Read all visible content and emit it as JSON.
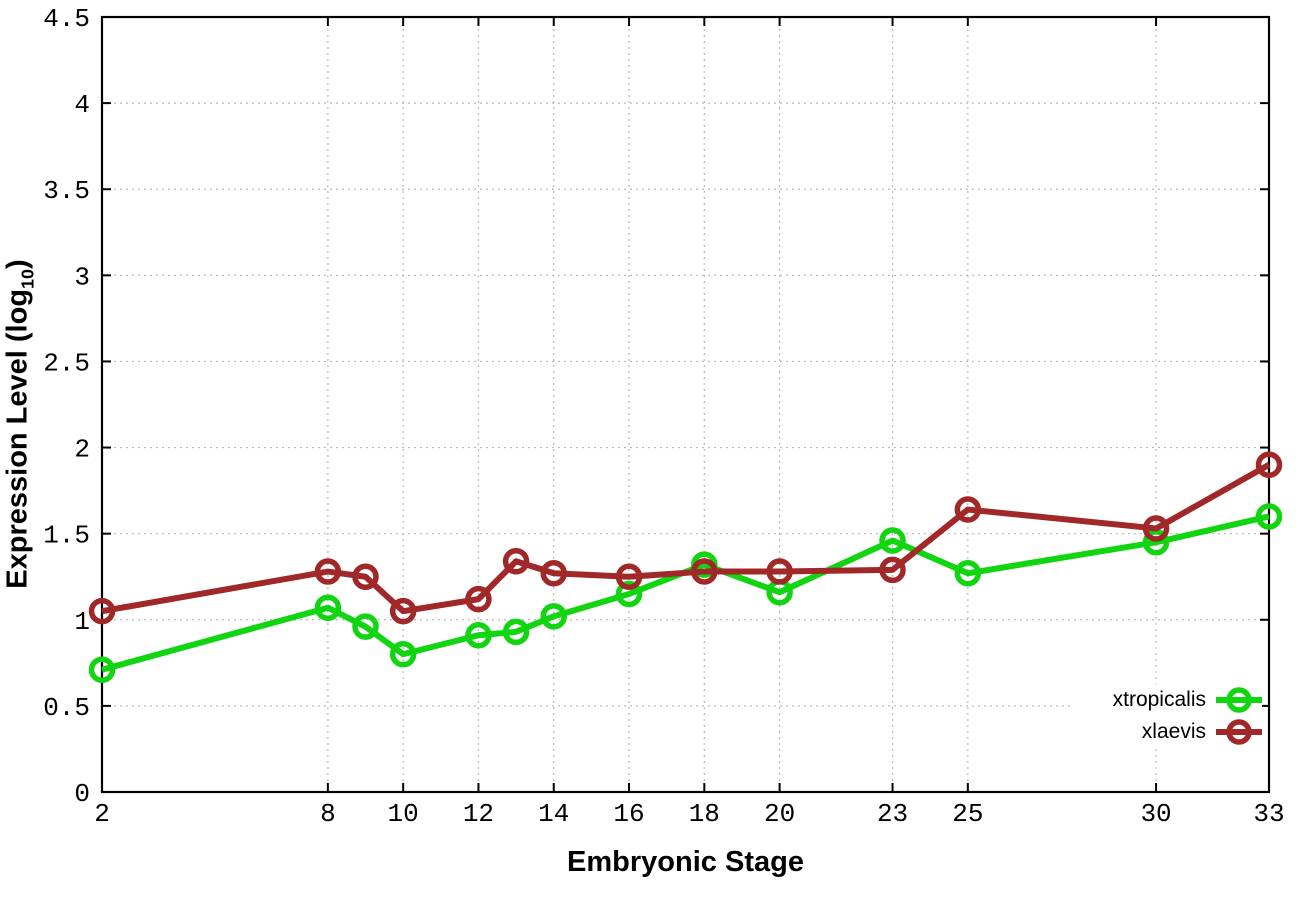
{
  "chart_data": {
    "type": "line",
    "title": "",
    "xlabel": "Embryonic Stage",
    "ylabel": {
      "main": "Expression Level (log",
      "sub": "10",
      "close": ")"
    },
    "x": [
      2,
      8,
      9,
      10,
      12,
      13,
      14,
      16,
      18,
      20,
      23,
      25,
      30,
      33
    ],
    "series": [
      {
        "name": "xtropicalis",
        "color": "#10d510",
        "values": [
          0.71,
          1.07,
          0.96,
          0.8,
          0.91,
          0.93,
          1.02,
          1.15,
          1.32,
          1.16,
          1.46,
          1.27,
          1.45,
          1.6
        ]
      },
      {
        "name": "xlaevis",
        "color": "#a02828",
        "values": [
          1.05,
          1.28,
          1.25,
          1.05,
          1.12,
          1.34,
          1.27,
          1.25,
          1.28,
          1.28,
          1.29,
          1.64,
          1.53,
          1.9
        ]
      }
    ],
    "xlim": [
      2,
      33
    ],
    "ylim": [
      0,
      4.5
    ],
    "xticks": [
      2,
      8,
      10,
      12,
      14,
      16,
      18,
      20,
      23,
      25,
      30,
      33
    ],
    "yticks": [
      0,
      0.5,
      1,
      1.5,
      2,
      2.5,
      3,
      3.5,
      4,
      4.5
    ],
    "grid": true,
    "legend_position": "bottom-right",
    "background_color": "#ffffff",
    "grid_color": "#b8b8b8",
    "axis_color": "#000000"
  }
}
